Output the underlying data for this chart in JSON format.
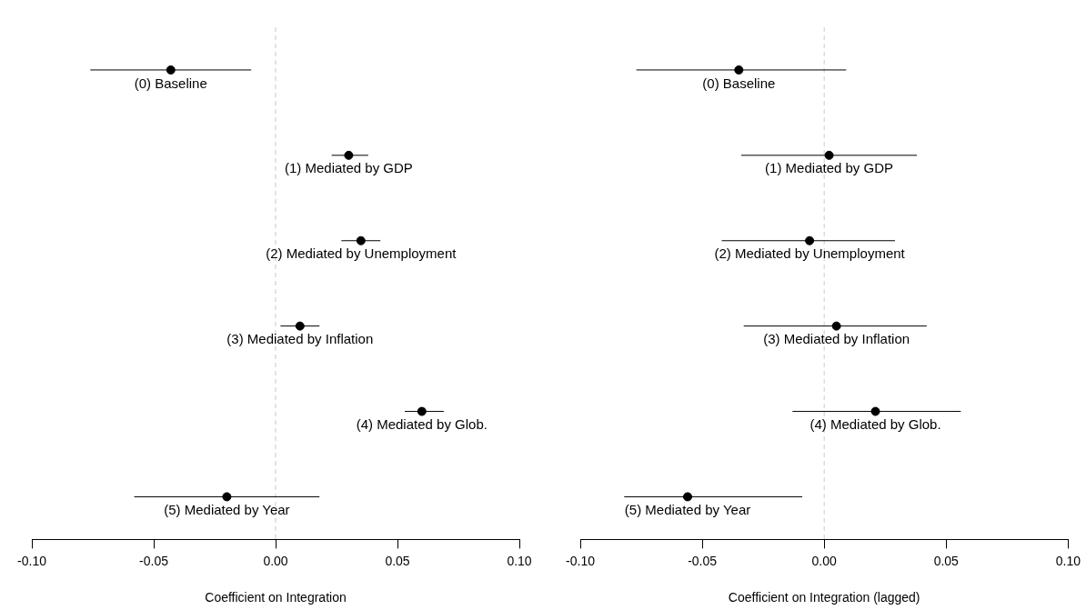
{
  "chart_data": [
    {
      "type": "scatter",
      "orientation": "horizontal",
      "marker": "circle",
      "color": "#000000",
      "categories": [
        "(0) Baseline",
        "(1) Mediated by GDP",
        "(2) Mediated by Unemployment",
        "(3) Mediated by Inflation",
        "(4) Mediated by Glob.",
        "(5) Mediated by Year"
      ],
      "values": [
        -0.043,
        0.03,
        0.035,
        0.01,
        0.06,
        -0.02
      ],
      "errors": [
        [
          -0.076,
          -0.01
        ],
        [
          0.023,
          0.038
        ],
        [
          0.027,
          0.043
        ],
        [
          0.002,
          0.018
        ],
        [
          0.053,
          0.069
        ],
        [
          -0.058,
          0.018
        ]
      ],
      "xlim": [
        -0.1,
        0.1
      ],
      "xticks": [
        {
          "value": -0.1,
          "label": "-0.10"
        },
        {
          "value": -0.05,
          "label": "-0.05"
        },
        {
          "value": 0,
          "label": "0.00"
        },
        {
          "value": 0.05,
          "label": "0.05"
        },
        {
          "value": 0.1,
          "label": "0.10"
        }
      ],
      "xlabel": "Coefficient on Integration",
      "ref_lines": [
        {
          "axis": "x",
          "value": 0,
          "color": "#d3d3d3",
          "line_style": "dashed"
        }
      ]
    },
    {
      "type": "scatter",
      "orientation": "horizontal",
      "marker": "circle",
      "color": "#000000",
      "categories": [
        "(0) Baseline",
        "(1) Mediated by GDP",
        "(2) Mediated by Unemployment",
        "(3) Mediated by Inflation",
        "(4) Mediated by Glob.",
        "(5) Mediated by Year"
      ],
      "values": [
        -0.035,
        0.002,
        -0.006,
        0.005,
        0.021,
        -0.056
      ],
      "errors": [
        [
          -0.077,
          0.009
        ],
        [
          -0.034,
          0.038
        ],
        [
          -0.042,
          0.029
        ],
        [
          -0.033,
          0.042
        ],
        [
          -0.013,
          0.056
        ],
        [
          -0.082,
          -0.009
        ]
      ],
      "xlim": [
        -0.1,
        0.1
      ],
      "xticks": [
        {
          "value": -0.1,
          "label": "-0.10"
        },
        {
          "value": -0.05,
          "label": "-0.05"
        },
        {
          "value": 0,
          "label": "0.00"
        },
        {
          "value": 0.05,
          "label": "0.05"
        },
        {
          "value": 0.1,
          "label": "0.10"
        }
      ],
      "xlabel": "Coefficient on Integration (lagged)",
      "ref_lines": [
        {
          "axis": "x",
          "value": 0,
          "color": "#d3d3d3",
          "line_style": "dashed"
        }
      ]
    }
  ]
}
